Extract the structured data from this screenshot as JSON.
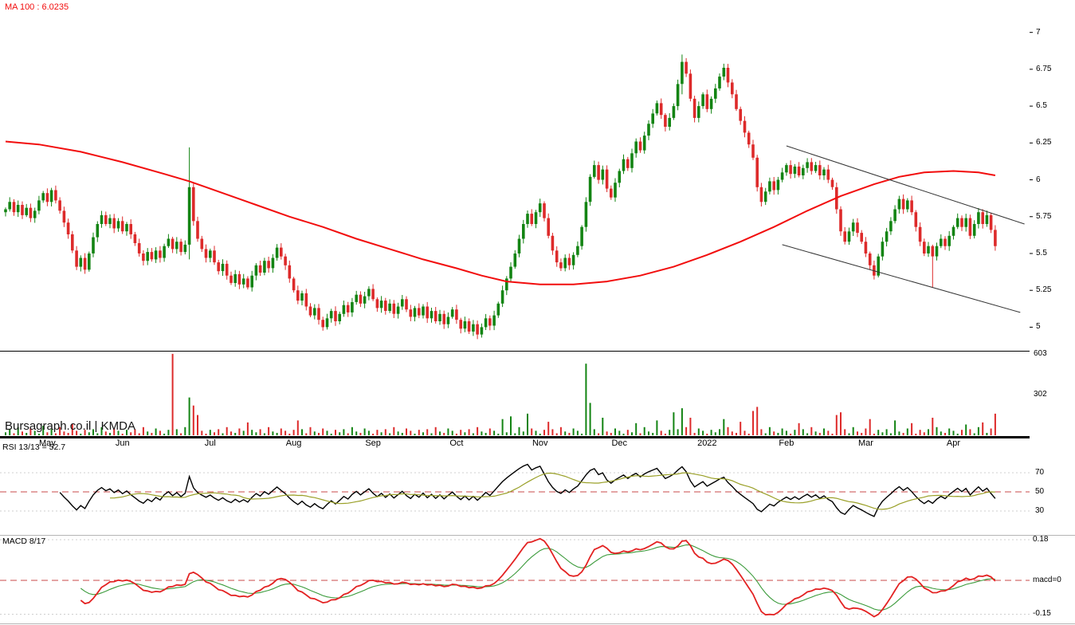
{
  "labels": {
    "ma": "MA 100 : 6.0235",
    "watermark": "Bursagraph.co.il | KMDA",
    "rsi": "RSI 13/13 = 52.7",
    "macd": "MACD 8/17"
  },
  "colors": {
    "up": "#138413",
    "down": "#dd2a2a",
    "ma": "#f20d0d",
    "rsi": "#000000",
    "rsi_signal": "#9aa028",
    "macd": "#e32222",
    "macd_signal": "#3a9a3a",
    "dashed": "#c84848",
    "trendline": "#333333",
    "axis_text": "#000000"
  },
  "x_axis": {
    "months": [
      {
        "label": "May",
        "i": 10
      },
      {
        "label": "Jun",
        "i": 28
      },
      {
        "label": "Jul",
        "i": 49
      },
      {
        "label": "Aug",
        "i": 69
      },
      {
        "label": "Sep",
        "i": 88
      },
      {
        "label": "Oct",
        "i": 108
      },
      {
        "label": "Nov",
        "i": 128
      },
      {
        "label": "Dec",
        "i": 147
      },
      {
        "label": "2022",
        "i": 168
      },
      {
        "label": "Feb",
        "i": 187
      },
      {
        "label": "Mar",
        "i": 206
      },
      {
        "label": "Apr",
        "i": 227
      }
    ]
  },
  "chart_data": [
    {
      "type": "candlestick",
      "name": "price",
      "symbol": "KMDA",
      "ylim": [
        4.84,
        7.22
      ],
      "yticks": [
        {
          "label": "7",
          "value": 7
        },
        {
          "label": "6.75",
          "value": 6.75
        },
        {
          "label": "6.5",
          "value": 6.5
        },
        {
          "label": "6.25",
          "value": 6.25
        },
        {
          "label": "6",
          "value": 6
        },
        {
          "label": "5.75",
          "value": 5.75
        },
        {
          "label": "5.5",
          "value": 5.5
        },
        {
          "label": "5.25",
          "value": 5.25
        },
        {
          "label": "5",
          "value": 5
        }
      ],
      "overlays": {
        "ma100_last": 6.0235,
        "ma100_anchors": [
          [
            0,
            6.26
          ],
          [
            8,
            6.24
          ],
          [
            18,
            6.19
          ],
          [
            28,
            6.12
          ],
          [
            38,
            6.04
          ],
          [
            44,
            5.99
          ],
          [
            52,
            5.91
          ],
          [
            60,
            5.83
          ],
          [
            68,
            5.75
          ],
          [
            76,
            5.68
          ],
          [
            84,
            5.6
          ],
          [
            92,
            5.53
          ],
          [
            100,
            5.46
          ],
          [
            108,
            5.4
          ],
          [
            114,
            5.35
          ],
          [
            120,
            5.31
          ],
          [
            128,
            5.29
          ],
          [
            136,
            5.29
          ],
          [
            144,
            5.31
          ],
          [
            152,
            5.35
          ],
          [
            160,
            5.41
          ],
          [
            168,
            5.49
          ],
          [
            176,
            5.58
          ],
          [
            184,
            5.68
          ],
          [
            192,
            5.79
          ],
          [
            200,
            5.89
          ],
          [
            208,
            5.97
          ],
          [
            214,
            6.02
          ],
          [
            220,
            6.05
          ],
          [
            227,
            6.06
          ],
          [
            233,
            6.05
          ],
          [
            237,
            6.03
          ]
        ],
        "trendlines": [
          {
            "i1": 187,
            "p1": 6.23,
            "i2": 244,
            "p2": 5.7
          },
          {
            "i1": 186,
            "p1": 5.56,
            "i2": 243,
            "p2": 5.1
          }
        ]
      },
      "wick_overrides": {
        "44": [
          6.22,
          5.46
        ],
        "162": [
          6.85,
          6.58
        ],
        "222": [
          5.56,
          5.27
        ]
      },
      "closes": [
        5.8,
        5.85,
        5.78,
        5.83,
        5.76,
        5.81,
        5.74,
        5.79,
        5.86,
        5.91,
        5.85,
        5.93,
        5.86,
        5.79,
        5.71,
        5.63,
        5.52,
        5.41,
        5.47,
        5.39,
        5.5,
        5.61,
        5.7,
        5.76,
        5.7,
        5.74,
        5.67,
        5.72,
        5.65,
        5.7,
        5.63,
        5.57,
        5.5,
        5.45,
        5.51,
        5.46,
        5.52,
        5.47,
        5.55,
        5.6,
        5.53,
        5.58,
        5.51,
        5.56,
        5.95,
        5.72,
        5.6,
        5.53,
        5.47,
        5.52,
        5.44,
        5.38,
        5.43,
        5.35,
        5.3,
        5.36,
        5.29,
        5.33,
        5.27,
        5.35,
        5.42,
        5.37,
        5.45,
        5.4,
        5.47,
        5.54,
        5.48,
        5.42,
        5.33,
        5.25,
        5.18,
        5.23,
        5.14,
        5.08,
        5.13,
        5.05,
        5.0,
        5.06,
        5.11,
        5.04,
        5.09,
        5.15,
        5.1,
        5.17,
        5.22,
        5.16,
        5.21,
        5.26,
        5.19,
        5.13,
        5.18,
        5.11,
        5.16,
        5.09,
        5.14,
        5.19,
        5.12,
        5.07,
        5.13,
        5.08,
        5.14,
        5.06,
        5.11,
        5.04,
        5.09,
        5.02,
        5.07,
        5.12,
        5.05,
        4.99,
        5.04,
        4.97,
        5.02,
        4.95,
        5.0,
        5.06,
        5.01,
        5.08,
        5.16,
        5.25,
        5.33,
        5.41,
        5.5,
        5.6,
        5.7,
        5.77,
        5.7,
        5.78,
        5.84,
        5.74,
        5.62,
        5.52,
        5.44,
        5.4,
        5.47,
        5.42,
        5.49,
        5.55,
        5.68,
        5.85,
        6.02,
        6.1,
        6.0,
        6.07,
        5.94,
        5.88,
        5.98,
        6.06,
        6.14,
        6.08,
        6.18,
        6.26,
        6.2,
        6.3,
        6.38,
        6.45,
        6.52,
        6.44,
        6.36,
        6.42,
        6.5,
        6.65,
        6.8,
        6.72,
        6.55,
        6.42,
        6.5,
        6.58,
        6.48,
        6.55,
        6.62,
        6.7,
        6.76,
        6.66,
        6.58,
        6.48,
        6.4,
        6.32,
        6.24,
        6.15,
        5.95,
        5.85,
        5.92,
        5.99,
        5.93,
        6.0,
        6.05,
        6.1,
        6.04,
        6.09,
        6.03,
        6.08,
        6.12,
        6.06,
        6.1,
        6.03,
        6.07,
        6.0,
        5.95,
        5.8,
        5.65,
        5.58,
        5.65,
        5.71,
        5.64,
        5.58,
        5.5,
        5.42,
        5.35,
        5.48,
        5.58,
        5.65,
        5.72,
        5.8,
        5.87,
        5.8,
        5.86,
        5.78,
        5.68,
        5.58,
        5.5,
        5.55,
        5.48,
        5.55,
        5.6,
        5.55,
        5.62,
        5.68,
        5.74,
        5.68,
        5.74,
        5.62,
        5.7,
        5.78,
        5.7,
        5.76,
        5.66,
        5.55
      ]
    },
    {
      "type": "bar",
      "name": "volume",
      "ymax": 620,
      "yticks": [
        {
          "label": "603",
          "value": 603
        },
        {
          "label": "302",
          "value": 302
        }
      ],
      "values": [
        22,
        45,
        15,
        60,
        28,
        18,
        50,
        33,
        12,
        70,
        22,
        45,
        15,
        60,
        28,
        18,
        85,
        33,
        12,
        40,
        22,
        45,
        15,
        60,
        28,
        18,
        50,
        33,
        12,
        40,
        22,
        45,
        15,
        60,
        28,
        18,
        50,
        33,
        12,
        40,
        603,
        45,
        15,
        60,
        280,
        220,
        150,
        33,
        12,
        40,
        22,
        45,
        15,
        60,
        28,
        18,
        50,
        33,
        95,
        40,
        22,
        45,
        15,
        60,
        28,
        18,
        50,
        33,
        12,
        40,
        110,
        45,
        15,
        60,
        28,
        18,
        50,
        33,
        12,
        40,
        22,
        45,
        15,
        60,
        28,
        18,
        50,
        33,
        12,
        40,
        22,
        45,
        15,
        60,
        28,
        18,
        50,
        33,
        12,
        40,
        22,
        45,
        15,
        60,
        28,
        18,
        50,
        33,
        12,
        40,
        22,
        45,
        15,
        60,
        28,
        18,
        50,
        33,
        12,
        120,
        22,
        140,
        15,
        60,
        28,
        160,
        50,
        33,
        12,
        40,
        100,
        45,
        15,
        60,
        28,
        18,
        50,
        33,
        12,
        530,
        240,
        45,
        15,
        130,
        28,
        18,
        50,
        33,
        12,
        40,
        22,
        90,
        15,
        60,
        28,
        18,
        110,
        33,
        12,
        40,
        170,
        45,
        200,
        60,
        130,
        18,
        50,
        33,
        12,
        40,
        22,
        45,
        120,
        60,
        28,
        18,
        100,
        33,
        12,
        180,
        210,
        45,
        15,
        60,
        28,
        18,
        50,
        33,
        12,
        40,
        90,
        45,
        15,
        60,
        28,
        18,
        50,
        33,
        12,
        150,
        170,
        45,
        15,
        60,
        28,
        18,
        50,
        120,
        12,
        40,
        22,
        45,
        15,
        110,
        28,
        18,
        50,
        90,
        12,
        40,
        22,
        45,
        130,
        60,
        28,
        18,
        50,
        33,
        12,
        40,
        80,
        45,
        15,
        60,
        95,
        18,
        50,
        160
      ]
    },
    {
      "type": "line",
      "name": "rsi",
      "period": 13,
      "smooth_period": 13,
      "last_value": 52.7,
      "midline": 50,
      "yticks": [
        {
          "label": "70",
          "value": 70
        },
        {
          "label": "50",
          "value": 50
        },
        {
          "label": "30",
          "value": 30
        }
      ]
    },
    {
      "type": "line",
      "name": "macd",
      "fast": 8,
      "slow": 17,
      "signal": 9,
      "yticks": [
        {
          "label": "0.18",
          "value": 0.18
        },
        {
          "label": "macd=0",
          "value": 0
        },
        {
          "label": "-0.15",
          "value": -0.15
        }
      ]
    }
  ]
}
